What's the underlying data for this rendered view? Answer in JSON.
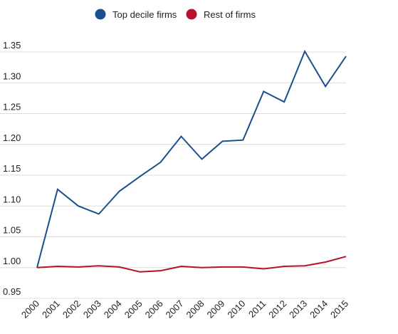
{
  "chart_data": {
    "type": "line",
    "title": "",
    "xlabel": "",
    "ylabel": "",
    "x": [
      "2000",
      "2001",
      "2002",
      "2003",
      "2004",
      "2005",
      "2006",
      "2007",
      "2008",
      "2009",
      "2010",
      "2011",
      "2012",
      "2013",
      "2014",
      "2015"
    ],
    "ylim": [
      0.95,
      1.35
    ],
    "yticks": [
      "0.95",
      "1.00",
      "1.05",
      "1.10",
      "1.15",
      "1.20",
      "1.25",
      "1.30",
      "1.35"
    ],
    "grid": true,
    "legend_position": "top",
    "series": [
      {
        "name": "Top decile firms",
        "color": "#1a4f8f",
        "values": [
          1.0,
          1.127,
          1.1,
          1.087,
          1.124,
          1.148,
          1.171,
          1.213,
          1.176,
          1.205,
          1.207,
          1.286,
          1.269,
          1.351,
          1.294,
          1.343
        ]
      },
      {
        "name": "Rest of firms",
        "color": "#b5122e",
        "values": [
          1.0,
          1.002,
          1.001,
          1.003,
          1.001,
          0.993,
          0.995,
          1.002,
          1.0,
          1.001,
          1.001,
          0.998,
          1.002,
          1.003,
          1.009,
          1.018
        ]
      }
    ]
  }
}
